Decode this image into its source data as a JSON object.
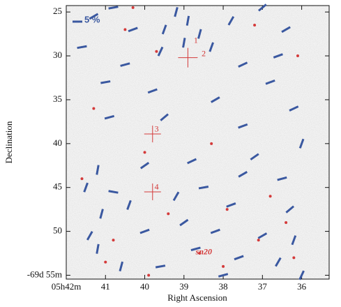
{
  "chart_data": {
    "type": "vector-map",
    "x_label": "Right Ascension",
    "y_label": "Declination",
    "scale_label": "5 %",
    "xlim": [
      42,
      35.3
    ],
    "ylim": [
      24.27,
      55.44
    ],
    "xticks": [
      {
        "value": 42,
        "label": "05h42m"
      },
      41,
      40,
      39,
      38,
      37,
      36
    ],
    "yticks": [
      25,
      30,
      35,
      40,
      45,
      50,
      {
        "value": 55,
        "label": "-69d 55m"
      }
    ],
    "vectors": {
      "color": "#3a58a0",
      "x": [
        39.2,
        38.9,
        39.5,
        38.6,
        39.0,
        38.3,
        39.6,
        37.8,
        40.3,
        40.8,
        41.3,
        37.0,
        36.4,
        37.5,
        36.8,
        40.5,
        41.0,
        39.8,
        38.2,
        36.2,
        40.9,
        37.5,
        36.0,
        38.8,
        40.0,
        41.2,
        41.5,
        37.5,
        36.5,
        38.5,
        39.2,
        40.4,
        41.1,
        37.8,
        36.3,
        39.0,
        38.2,
        37.0,
        36.2,
        40.0,
        41.4,
        38.7,
        37.6,
        36.6,
        39.6,
        40.6,
        41.2,
        38.0,
        36.0,
        40.8,
        37.2,
        39.5,
        36.6,
        41.6
      ],
      "y": [
        25,
        26,
        27,
        27.5,
        28.5,
        29,
        29.5,
        26,
        27,
        24.5,
        25.5,
        24.5,
        27,
        31,
        33,
        31,
        33,
        34,
        35,
        36,
        37,
        38,
        40,
        42,
        42.5,
        43,
        45,
        43.5,
        44,
        45,
        46,
        47,
        48,
        47,
        47.5,
        49,
        50,
        50.5,
        51,
        50,
        50.5,
        52,
        53,
        53.5,
        54,
        54,
        52,
        55,
        55,
        45.5,
        41.5,
        37,
        30,
        29
      ],
      "angle": [
        75,
        80,
        70,
        75,
        80,
        70,
        65,
        60,
        20,
        10,
        30,
        40,
        30,
        25,
        20,
        15,
        10,
        20,
        30,
        25,
        15,
        20,
        70,
        25,
        35,
        80,
        70,
        30,
        15,
        10,
        60,
        70,
        75,
        20,
        40,
        35,
        20,
        30,
        70,
        20,
        60,
        15,
        20,
        60,
        10,
        75,
        80,
        15,
        65,
        -10,
        35,
        40,
        20,
        10
      ]
    },
    "dots": {
      "color": "#d43a3a",
      "x": [
        40.5,
        39.7,
        37.2,
        36.1,
        41.3,
        40.0,
        38.3,
        36.8,
        41.6,
        39.4,
        37.9,
        36.4,
        40.8,
        38.6,
        37.1,
        41.0,
        39.9,
        36.2,
        38.0,
        40.3
      ],
      "y": [
        27,
        29.5,
        26.5,
        30,
        36,
        41,
        40,
        46,
        44,
        48,
        47.5,
        49,
        51,
        52.5,
        51,
        53.5,
        55,
        53,
        54,
        24.5
      ]
    },
    "annotations": [
      {
        "text": "1",
        "x": 38.75,
        "y": 28.3
      },
      {
        "text": "2",
        "x": 38.55,
        "y": 29.8
      },
      {
        "text": "3",
        "x": 39.75,
        "y": 38.4
      },
      {
        "text": "4",
        "x": 39.75,
        "y": 45.0
      },
      {
        "text": "sn20",
        "x": 38.7,
        "y": 52.4
      }
    ],
    "crosses": {
      "x": [
        38.9,
        39.8,
        39.8
      ],
      "y": [
        30.2,
        38.9,
        45.5
      ]
    }
  }
}
